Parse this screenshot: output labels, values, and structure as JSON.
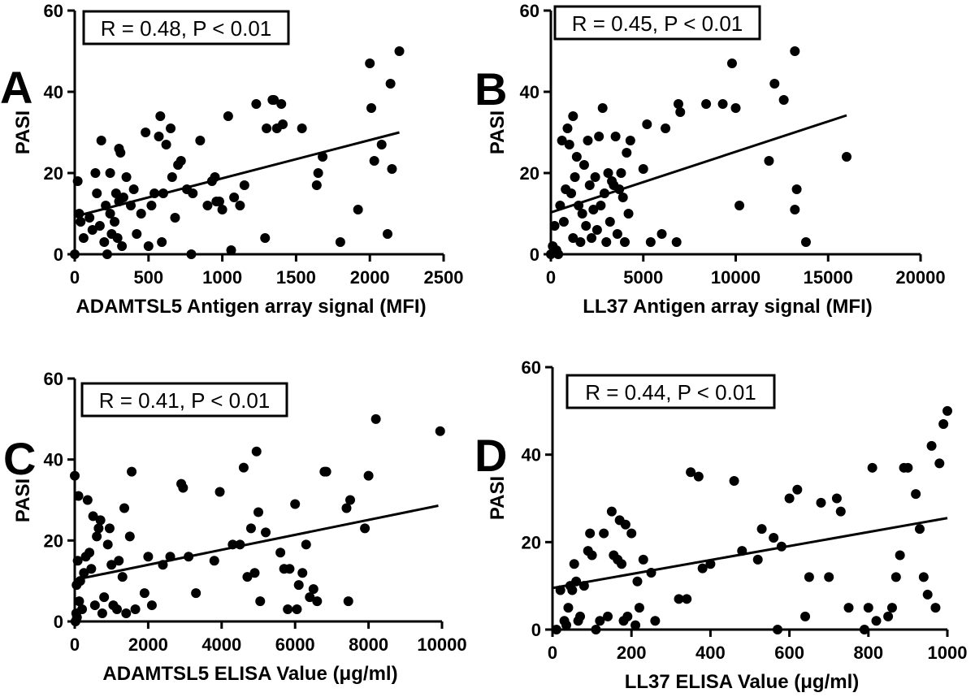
{
  "chart_data": [
    {
      "type": "scatter",
      "panel": "A",
      "stat_text": "R = 0.48, P < 0.01",
      "xlabel": "ADAMTSL5 Antigen array signal (MFI)",
      "ylabel": "PASI",
      "xlim": [
        0,
        2500
      ],
      "ylim": [
        0,
        60
      ],
      "xticks": [
        "0",
        "500",
        "1000",
        "1500",
        "2000",
        "2500"
      ],
      "yticks": [
        "0",
        "20",
        "40",
        "60"
      ],
      "fit": [
        [
          0,
          9.3
        ],
        [
          2200,
          30
        ]
      ],
      "points": [
        [
          0,
          0
        ],
        [
          20,
          18
        ],
        [
          30,
          10
        ],
        [
          40,
          8
        ],
        [
          60,
          4
        ],
        [
          100,
          9
        ],
        [
          120,
          6
        ],
        [
          140,
          20
        ],
        [
          150,
          15
        ],
        [
          170,
          7
        ],
        [
          180,
          28
        ],
        [
          200,
          3
        ],
        [
          210,
          12
        ],
        [
          220,
          0
        ],
        [
          240,
          10
        ],
        [
          240,
          20
        ],
        [
          250,
          5
        ],
        [
          270,
          8
        ],
        [
          280,
          15
        ],
        [
          290,
          4
        ],
        [
          300,
          13
        ],
        [
          300,
          26
        ],
        [
          310,
          25
        ],
        [
          320,
          2
        ],
        [
          330,
          14
        ],
        [
          350,
          19
        ],
        [
          380,
          12
        ],
        [
          400,
          16
        ],
        [
          420,
          5
        ],
        [
          450,
          10
        ],
        [
          480,
          30
        ],
        [
          500,
          2
        ],
        [
          520,
          12
        ],
        [
          540,
          15
        ],
        [
          570,
          29
        ],
        [
          580,
          34
        ],
        [
          590,
          3
        ],
        [
          600,
          15
        ],
        [
          620,
          27
        ],
        [
          650,
          31
        ],
        [
          660,
          19
        ],
        [
          680,
          9
        ],
        [
          700,
          22
        ],
        [
          720,
          23
        ],
        [
          760,
          16
        ],
        [
          790,
          0
        ],
        [
          800,
          15
        ],
        [
          850,
          28
        ],
        [
          900,
          12
        ],
        [
          930,
          18
        ],
        [
          950,
          19
        ],
        [
          960,
          13
        ],
        [
          980,
          13
        ],
        [
          1000,
          11
        ],
        [
          1040,
          34
        ],
        [
          1060,
          1
        ],
        [
          1080,
          14
        ],
        [
          1120,
          12
        ],
        [
          1150,
          17
        ],
        [
          1230,
          37
        ],
        [
          1290,
          4
        ],
        [
          1300,
          31
        ],
        [
          1340,
          38
        ],
        [
          1350,
          38
        ],
        [
          1370,
          31
        ],
        [
          1400,
          37
        ],
        [
          1410,
          32
        ],
        [
          1540,
          31
        ],
        [
          1640,
          17
        ],
        [
          1650,
          20
        ],
        [
          1680,
          24
        ],
        [
          1800,
          3
        ],
        [
          1920,
          11
        ],
        [
          2000,
          47
        ],
        [
          2010,
          36
        ],
        [
          2030,
          23
        ],
        [
          2080,
          27
        ],
        [
          2120,
          5
        ],
        [
          2140,
          42
        ],
        [
          2150,
          21
        ],
        [
          2200,
          50
        ]
      ]
    },
    {
      "type": "scatter",
      "panel": "B",
      "stat_text": "R = 0.45, P < 0.01",
      "xlabel": "LL37 Antigen array signal (MFI)",
      "ylabel": "PASI",
      "xlim": [
        0,
        20000
      ],
      "ylim": [
        0,
        60
      ],
      "xticks": [
        "0",
        "5000",
        "10000",
        "15000",
        "20000"
      ],
      "yticks": [
        "0",
        "20",
        "40",
        "60"
      ],
      "fit": [
        [
          0,
          10.3
        ],
        [
          16000,
          34.2
        ]
      ],
      "points": [
        [
          0,
          0
        ],
        [
          100,
          2
        ],
        [
          200,
          7
        ],
        [
          300,
          1
        ],
        [
          400,
          0
        ],
        [
          500,
          12
        ],
        [
          600,
          28
        ],
        [
          700,
          8
        ],
        [
          800,
          16
        ],
        [
          900,
          31
        ],
        [
          1000,
          27
        ],
        [
          1100,
          15
        ],
        [
          1200,
          34
        ],
        [
          1200,
          4
        ],
        [
          1300,
          19
        ],
        [
          1400,
          24
        ],
        [
          1500,
          12
        ],
        [
          1600,
          3
        ],
        [
          1700,
          10
        ],
        [
          1800,
          22
        ],
        [
          1900,
          7
        ],
        [
          2000,
          28
        ],
        [
          2100,
          17
        ],
        [
          2200,
          4
        ],
        [
          2300,
          11
        ],
        [
          2400,
          19
        ],
        [
          2500,
          6
        ],
        [
          2600,
          29
        ],
        [
          2700,
          12
        ],
        [
          2800,
          36
        ],
        [
          2900,
          15
        ],
        [
          3000,
          3
        ],
        [
          3100,
          20
        ],
        [
          3200,
          8
        ],
        [
          3300,
          18
        ],
        [
          3400,
          17
        ],
        [
          3500,
          29
        ],
        [
          3600,
          5
        ],
        [
          3700,
          16
        ],
        [
          3800,
          20
        ],
        [
          3900,
          14
        ],
        [
          4000,
          3
        ],
        [
          4100,
          25
        ],
        [
          4200,
          10
        ],
        [
          4300,
          28
        ],
        [
          5000,
          21
        ],
        [
          5200,
          32
        ],
        [
          5400,
          3
        ],
        [
          6000,
          5
        ],
        [
          6200,
          31
        ],
        [
          6800,
          3
        ],
        [
          6900,
          37
        ],
        [
          7000,
          35
        ],
        [
          8400,
          37
        ],
        [
          9300,
          37
        ],
        [
          9800,
          47
        ],
        [
          10000,
          36
        ],
        [
          10200,
          12
        ],
        [
          11800,
          23
        ],
        [
          12100,
          42
        ],
        [
          12600,
          38
        ],
        [
          13200,
          50
        ],
        [
          13200,
          11
        ],
        [
          13300,
          16
        ],
        [
          13800,
          3
        ],
        [
          16000,
          24
        ]
      ]
    },
    {
      "type": "scatter",
      "panel": "C",
      "stat_text": "R = 0.41, P < 0.01",
      "xlabel": "ADAMTSL5 ELISA Value (μg/ml)",
      "ylabel": "PASI",
      "xlim": [
        0,
        10000
      ],
      "ylim": [
        0,
        60
      ],
      "xticks": [
        "0",
        "2000",
        "4000",
        "6000",
        "8000",
        "10000"
      ],
      "yticks": [
        "0",
        "20",
        "40",
        "60"
      ],
      "fit": [
        [
          0,
          10.3
        ],
        [
          9900,
          28.6
        ]
      ],
      "points": [
        [
          0,
          36
        ],
        [
          20,
          0
        ],
        [
          40,
          2
        ],
        [
          50,
          9
        ],
        [
          60,
          1
        ],
        [
          80,
          15
        ],
        [
          100,
          31
        ],
        [
          120,
          5
        ],
        [
          150,
          10
        ],
        [
          200,
          3
        ],
        [
          250,
          12
        ],
        [
          300,
          16
        ],
        [
          350,
          30
        ],
        [
          400,
          17
        ],
        [
          450,
          13
        ],
        [
          500,
          26
        ],
        [
          550,
          4
        ],
        [
          600,
          21
        ],
        [
          650,
          23
        ],
        [
          700,
          25
        ],
        [
          750,
          2
        ],
        [
          800,
          6
        ],
        [
          900,
          19
        ],
        [
          950,
          23
        ],
        [
          1000,
          14
        ],
        [
          1050,
          4
        ],
        [
          1150,
          3
        ],
        [
          1200,
          15
        ],
        [
          1300,
          11
        ],
        [
          1350,
          28
        ],
        [
          1400,
          2
        ],
        [
          1500,
          21
        ],
        [
          1550,
          37
        ],
        [
          1650,
          3
        ],
        [
          1900,
          7
        ],
        [
          2000,
          16
        ],
        [
          2100,
          4
        ],
        [
          2400,
          14
        ],
        [
          2600,
          16
        ],
        [
          2900,
          34
        ],
        [
          2950,
          33
        ],
        [
          3100,
          16
        ],
        [
          3300,
          7
        ],
        [
          3800,
          15
        ],
        [
          3950,
          32
        ],
        [
          4300,
          19
        ],
        [
          4500,
          19
        ],
        [
          4600,
          38
        ],
        [
          4700,
          11
        ],
        [
          4800,
          23
        ],
        [
          4900,
          12
        ],
        [
          4950,
          42
        ],
        [
          5000,
          27
        ],
        [
          5050,
          5
        ],
        [
          5200,
          22
        ],
        [
          5600,
          17
        ],
        [
          5700,
          13
        ],
        [
          5800,
          3
        ],
        [
          5850,
          13
        ],
        [
          6000,
          29
        ],
        [
          6050,
          3
        ],
        [
          6100,
          9
        ],
        [
          6200,
          12
        ],
        [
          6300,
          19
        ],
        [
          6400,
          6
        ],
        [
          6500,
          8
        ],
        [
          6600,
          5
        ],
        [
          6800,
          37
        ],
        [
          6850,
          37
        ],
        [
          7400,
          28
        ],
        [
          7500,
          30
        ],
        [
          7450,
          5
        ],
        [
          7900,
          23
        ],
        [
          8000,
          36
        ],
        [
          8200,
          50
        ],
        [
          9950,
          47
        ]
      ]
    },
    {
      "type": "scatter",
      "panel": "D",
      "stat_text": "R = 0.44, P < 0.01",
      "xlabel": "LL37 ELISA Value (μg/ml)",
      "ylabel": "PASI",
      "xlim": [
        0,
        1000
      ],
      "ylim": [
        0,
        60
      ],
      "xticks": [
        "0",
        "200",
        "400",
        "600",
        "800",
        "1000"
      ],
      "yticks": [
        "0",
        "20",
        "40",
        "60"
      ],
      "fit": [
        [
          0,
          9.5
        ],
        [
          1000,
          25.5
        ]
      ],
      "points": [
        [
          10,
          0
        ],
        [
          20,
          9
        ],
        [
          30,
          2
        ],
        [
          35,
          1
        ],
        [
          40,
          5
        ],
        [
          45,
          10
        ],
        [
          50,
          9
        ],
        [
          55,
          15
        ],
        [
          60,
          11
        ],
        [
          65,
          2
        ],
        [
          70,
          3
        ],
        [
          80,
          10
        ],
        [
          90,
          18
        ],
        [
          95,
          22
        ],
        [
          100,
          17
        ],
        [
          110,
          0
        ],
        [
          120,
          2
        ],
        [
          130,
          22
        ],
        [
          140,
          3
        ],
        [
          150,
          27
        ],
        [
          155,
          17
        ],
        [
          165,
          16
        ],
        [
          170,
          25
        ],
        [
          175,
          15
        ],
        [
          180,
          2
        ],
        [
          185,
          24
        ],
        [
          190,
          3
        ],
        [
          200,
          22
        ],
        [
          210,
          1
        ],
        [
          215,
          11
        ],
        [
          220,
          5
        ],
        [
          230,
          16
        ],
        [
          250,
          13
        ],
        [
          260,
          2
        ],
        [
          320,
          7
        ],
        [
          340,
          7
        ],
        [
          350,
          36
        ],
        [
          370,
          35
        ],
        [
          380,
          14
        ],
        [
          400,
          15
        ],
        [
          460,
          34
        ],
        [
          480,
          18
        ],
        [
          520,
          16
        ],
        [
          530,
          23
        ],
        [
          560,
          21
        ],
        [
          570,
          0
        ],
        [
          580,
          19
        ],
        [
          600,
          30
        ],
        [
          620,
          32
        ],
        [
          640,
          3
        ],
        [
          650,
          12
        ],
        [
          680,
          29
        ],
        [
          700,
          12
        ],
        [
          720,
          30
        ],
        [
          730,
          27
        ],
        [
          750,
          5
        ],
        [
          790,
          0
        ],
        [
          800,
          5
        ],
        [
          810,
          37
        ],
        [
          820,
          2
        ],
        [
          850,
          3
        ],
        [
          860,
          5
        ],
        [
          870,
          12
        ],
        [
          880,
          17
        ],
        [
          890,
          37
        ],
        [
          900,
          37
        ],
        [
          920,
          31
        ],
        [
          930,
          23
        ],
        [
          940,
          12
        ],
        [
          950,
          8
        ],
        [
          960,
          42
        ],
        [
          970,
          5
        ],
        [
          980,
          38
        ],
        [
          990,
          47
        ],
        [
          1000,
          50
        ]
      ]
    }
  ]
}
